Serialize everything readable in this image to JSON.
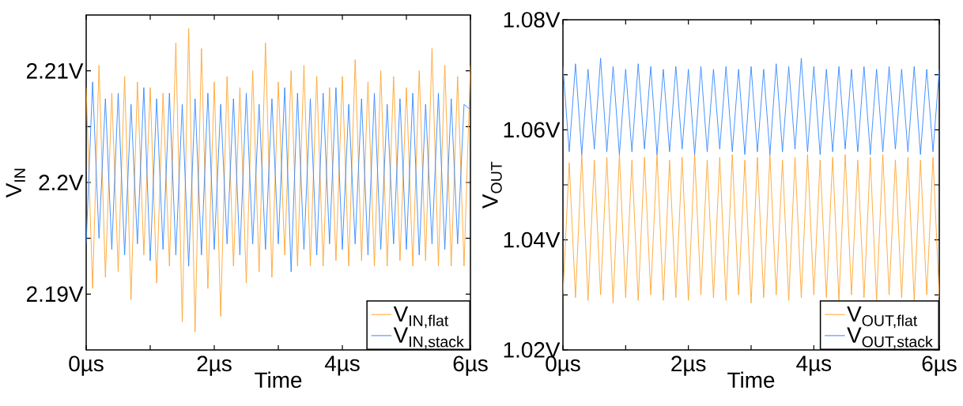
{
  "chart_data": [
    {
      "type": "line",
      "xlabel": "Time",
      "ylabel": "V$_{IN}$",
      "legend": "bottom right",
      "xlim": [
        0,
        6
      ],
      "ylim": [
        2.185,
        2.215
      ],
      "xticks": [
        {
          "value": 0,
          "label": "0µs"
        },
        {
          "value": 1,
          "label": null
        },
        {
          "value": 2,
          "label": "2µs"
        },
        {
          "value": 3,
          "label": null
        },
        {
          "value": 4,
          "label": "4µs"
        },
        {
          "value": 5,
          "label": null
        },
        {
          "value": 6,
          "label": "6µs"
        }
      ],
      "yticks": [
        {
          "value": 2.19,
          "label": "2.19V"
        },
        {
          "value": 2.195,
          "label": null
        },
        {
          "value": 2.2,
          "label": "2.2V"
        },
        {
          "value": 2.205,
          "label": null
        },
        {
          "value": 2.21,
          "label": "2.21V"
        }
      ],
      "x": [
        0,
        0.1,
        0.2,
        0.3,
        0.4,
        0.5,
        0.6,
        0.7,
        0.8,
        0.9,
        1.0,
        1.1,
        1.2,
        1.3,
        1.4,
        1.5,
        1.6,
        1.7,
        1.8,
        1.9,
        2.0,
        2.1,
        2.2,
        2.3,
        2.4,
        2.5,
        2.6,
        2.7,
        2.8,
        2.9,
        3.0,
        3.1,
        3.2,
        3.3,
        3.4,
        3.5,
        3.6,
        3.7,
        3.8,
        3.9,
        4.0,
        4.1,
        4.2,
        4.3,
        4.4,
        4.5,
        4.6,
        4.7,
        4.8,
        4.9,
        5.0,
        5.1,
        5.2,
        5.3,
        5.4,
        5.5,
        5.6,
        5.7,
        5.8,
        5.9,
        6.0
      ],
      "series": [
        {
          "name": "V$_{IN,flat}$",
          "color": "#ffa530",
          "values": [
            2.2085,
            2.1905,
            2.2105,
            2.1915,
            2.208,
            2.192,
            2.2095,
            2.1895,
            2.209,
            2.1935,
            2.2085,
            2.191,
            2.208,
            2.1925,
            2.2125,
            2.1875,
            2.2138,
            2.1866,
            2.212,
            2.1905,
            2.209,
            2.188,
            2.2095,
            2.1925,
            2.2085,
            2.191,
            2.21,
            2.192,
            2.2125,
            2.1915,
            2.209,
            2.1935,
            2.21,
            2.1925,
            2.2105,
            2.1925,
            2.2095,
            2.1925,
            2.2085,
            2.193,
            2.2095,
            2.1925,
            2.211,
            2.193,
            2.209,
            2.1925,
            2.21,
            2.1925,
            2.2095,
            2.193,
            2.2085,
            2.1925,
            2.21,
            2.193,
            2.212,
            2.1925,
            2.2105,
            2.1925,
            2.2095,
            2.1925,
            2.2105
          ]
        },
        {
          "name": "V$_{IN,stack}$",
          "color": "#3388ff",
          "values": [
            2.1945,
            2.209,
            2.195,
            2.2075,
            2.194,
            2.208,
            2.1935,
            2.207,
            2.1945,
            2.2085,
            2.193,
            2.2075,
            2.194,
            2.208,
            2.1935,
            2.207,
            2.1925,
            2.2075,
            2.1935,
            2.208,
            2.194,
            2.207,
            2.1945,
            2.2075,
            2.1935,
            2.208,
            2.1945,
            2.207,
            2.194,
            2.2075,
            2.1945,
            2.2085,
            2.192,
            2.208,
            2.194,
            2.2075,
            2.1935,
            2.208,
            2.1945,
            2.2085,
            2.194,
            2.207,
            2.1945,
            2.2075,
            2.1935,
            2.208,
            2.194,
            2.207,
            2.1945,
            2.2075,
            2.194,
            2.208,
            2.1935,
            2.207,
            2.1945,
            2.208,
            2.194,
            2.2075,
            2.1945,
            2.207,
            2.2065
          ]
        }
      ]
    },
    {
      "type": "line",
      "xlabel": "Time",
      "ylabel": "V$_{OUT}$",
      "legend": "bottom right",
      "xlim": [
        0,
        6
      ],
      "ylim": [
        1.02,
        1.08
      ],
      "xticks": [
        {
          "value": 0,
          "label": "0µs"
        },
        {
          "value": 1,
          "label": null
        },
        {
          "value": 2,
          "label": "2µs"
        },
        {
          "value": 3,
          "label": null
        },
        {
          "value": 4,
          "label": "4µs"
        },
        {
          "value": 5,
          "label": null
        },
        {
          "value": 6,
          "label": "6µs"
        }
      ],
      "yticks": [
        {
          "value": 1.02,
          "label": "1.02V"
        },
        {
          "value": 1.03,
          "label": null
        },
        {
          "value": 1.04,
          "label": "1.04V"
        },
        {
          "value": 1.05,
          "label": null
        },
        {
          "value": 1.06,
          "label": "1.06V"
        },
        {
          "value": 1.07,
          "label": null
        },
        {
          "value": 1.08,
          "label": "1.08V"
        }
      ],
      "x": [
        0,
        0.1,
        0.2,
        0.3,
        0.4,
        0.5,
        0.6,
        0.7,
        0.8,
        0.9,
        1.0,
        1.1,
        1.2,
        1.3,
        1.4,
        1.5,
        1.6,
        1.7,
        1.8,
        1.9,
        2.0,
        2.1,
        2.2,
        2.3,
        2.4,
        2.5,
        2.6,
        2.7,
        2.8,
        2.9,
        3.0,
        3.1,
        3.2,
        3.3,
        3.4,
        3.5,
        3.6,
        3.7,
        3.8,
        3.9,
        4.0,
        4.1,
        4.2,
        4.3,
        4.4,
        4.5,
        4.6,
        4.7,
        4.8,
        4.9,
        5.0,
        5.1,
        5.2,
        5.3,
        5.4,
        5.5,
        5.6,
        5.7,
        5.8,
        5.9,
        6.0
      ],
      "series": [
        {
          "name": "V$_{OUT,flat}$",
          "color": "#ffa530",
          "values": [
            1.03,
            1.054,
            1.0295,
            1.0555,
            1.029,
            1.0545,
            1.03,
            1.055,
            1.0285,
            1.0555,
            1.0295,
            1.0545,
            1.029,
            1.055,
            1.03,
            1.0555,
            1.029,
            1.0545,
            1.0295,
            1.055,
            1.029,
            1.0555,
            1.03,
            1.0545,
            1.0295,
            1.055,
            1.029,
            1.0555,
            1.03,
            1.0545,
            1.0285,
            1.055,
            1.0295,
            1.0555,
            1.03,
            1.0545,
            1.029,
            1.055,
            1.0295,
            1.0555,
            1.03,
            1.0545,
            1.0295,
            1.055,
            1.029,
            1.0555,
            1.03,
            1.0545,
            1.0295,
            1.055,
            1.029,
            1.0555,
            1.03,
            1.0545,
            1.0295,
            1.055,
            1.029,
            1.0545,
            1.03,
            1.055,
            1.0295
          ]
        },
        {
          "name": "V$_{OUT,stack}$",
          "color": "#3388ff",
          "values": [
            1.0715,
            1.056,
            1.072,
            1.0555,
            1.071,
            1.0565,
            1.073,
            1.056,
            1.0715,
            1.0555,
            1.071,
            1.056,
            1.072,
            1.0565,
            1.0715,
            1.0555,
            1.071,
            1.056,
            1.0715,
            1.0565,
            1.071,
            1.0555,
            1.0715,
            1.056,
            1.071,
            1.0565,
            1.0715,
            1.056,
            1.071,
            1.0555,
            1.0715,
            1.056,
            1.071,
            1.0555,
            1.072,
            1.056,
            1.0715,
            1.0565,
            1.073,
            1.056,
            1.0715,
            1.0555,
            1.071,
            1.056,
            1.0715,
            1.0565,
            1.071,
            1.056,
            1.0715,
            1.0555,
            1.071,
            1.056,
            1.0715,
            1.0565,
            1.071,
            1.056,
            1.0715,
            1.0555,
            1.071,
            1.056,
            1.071
          ]
        }
      ]
    }
  ]
}
